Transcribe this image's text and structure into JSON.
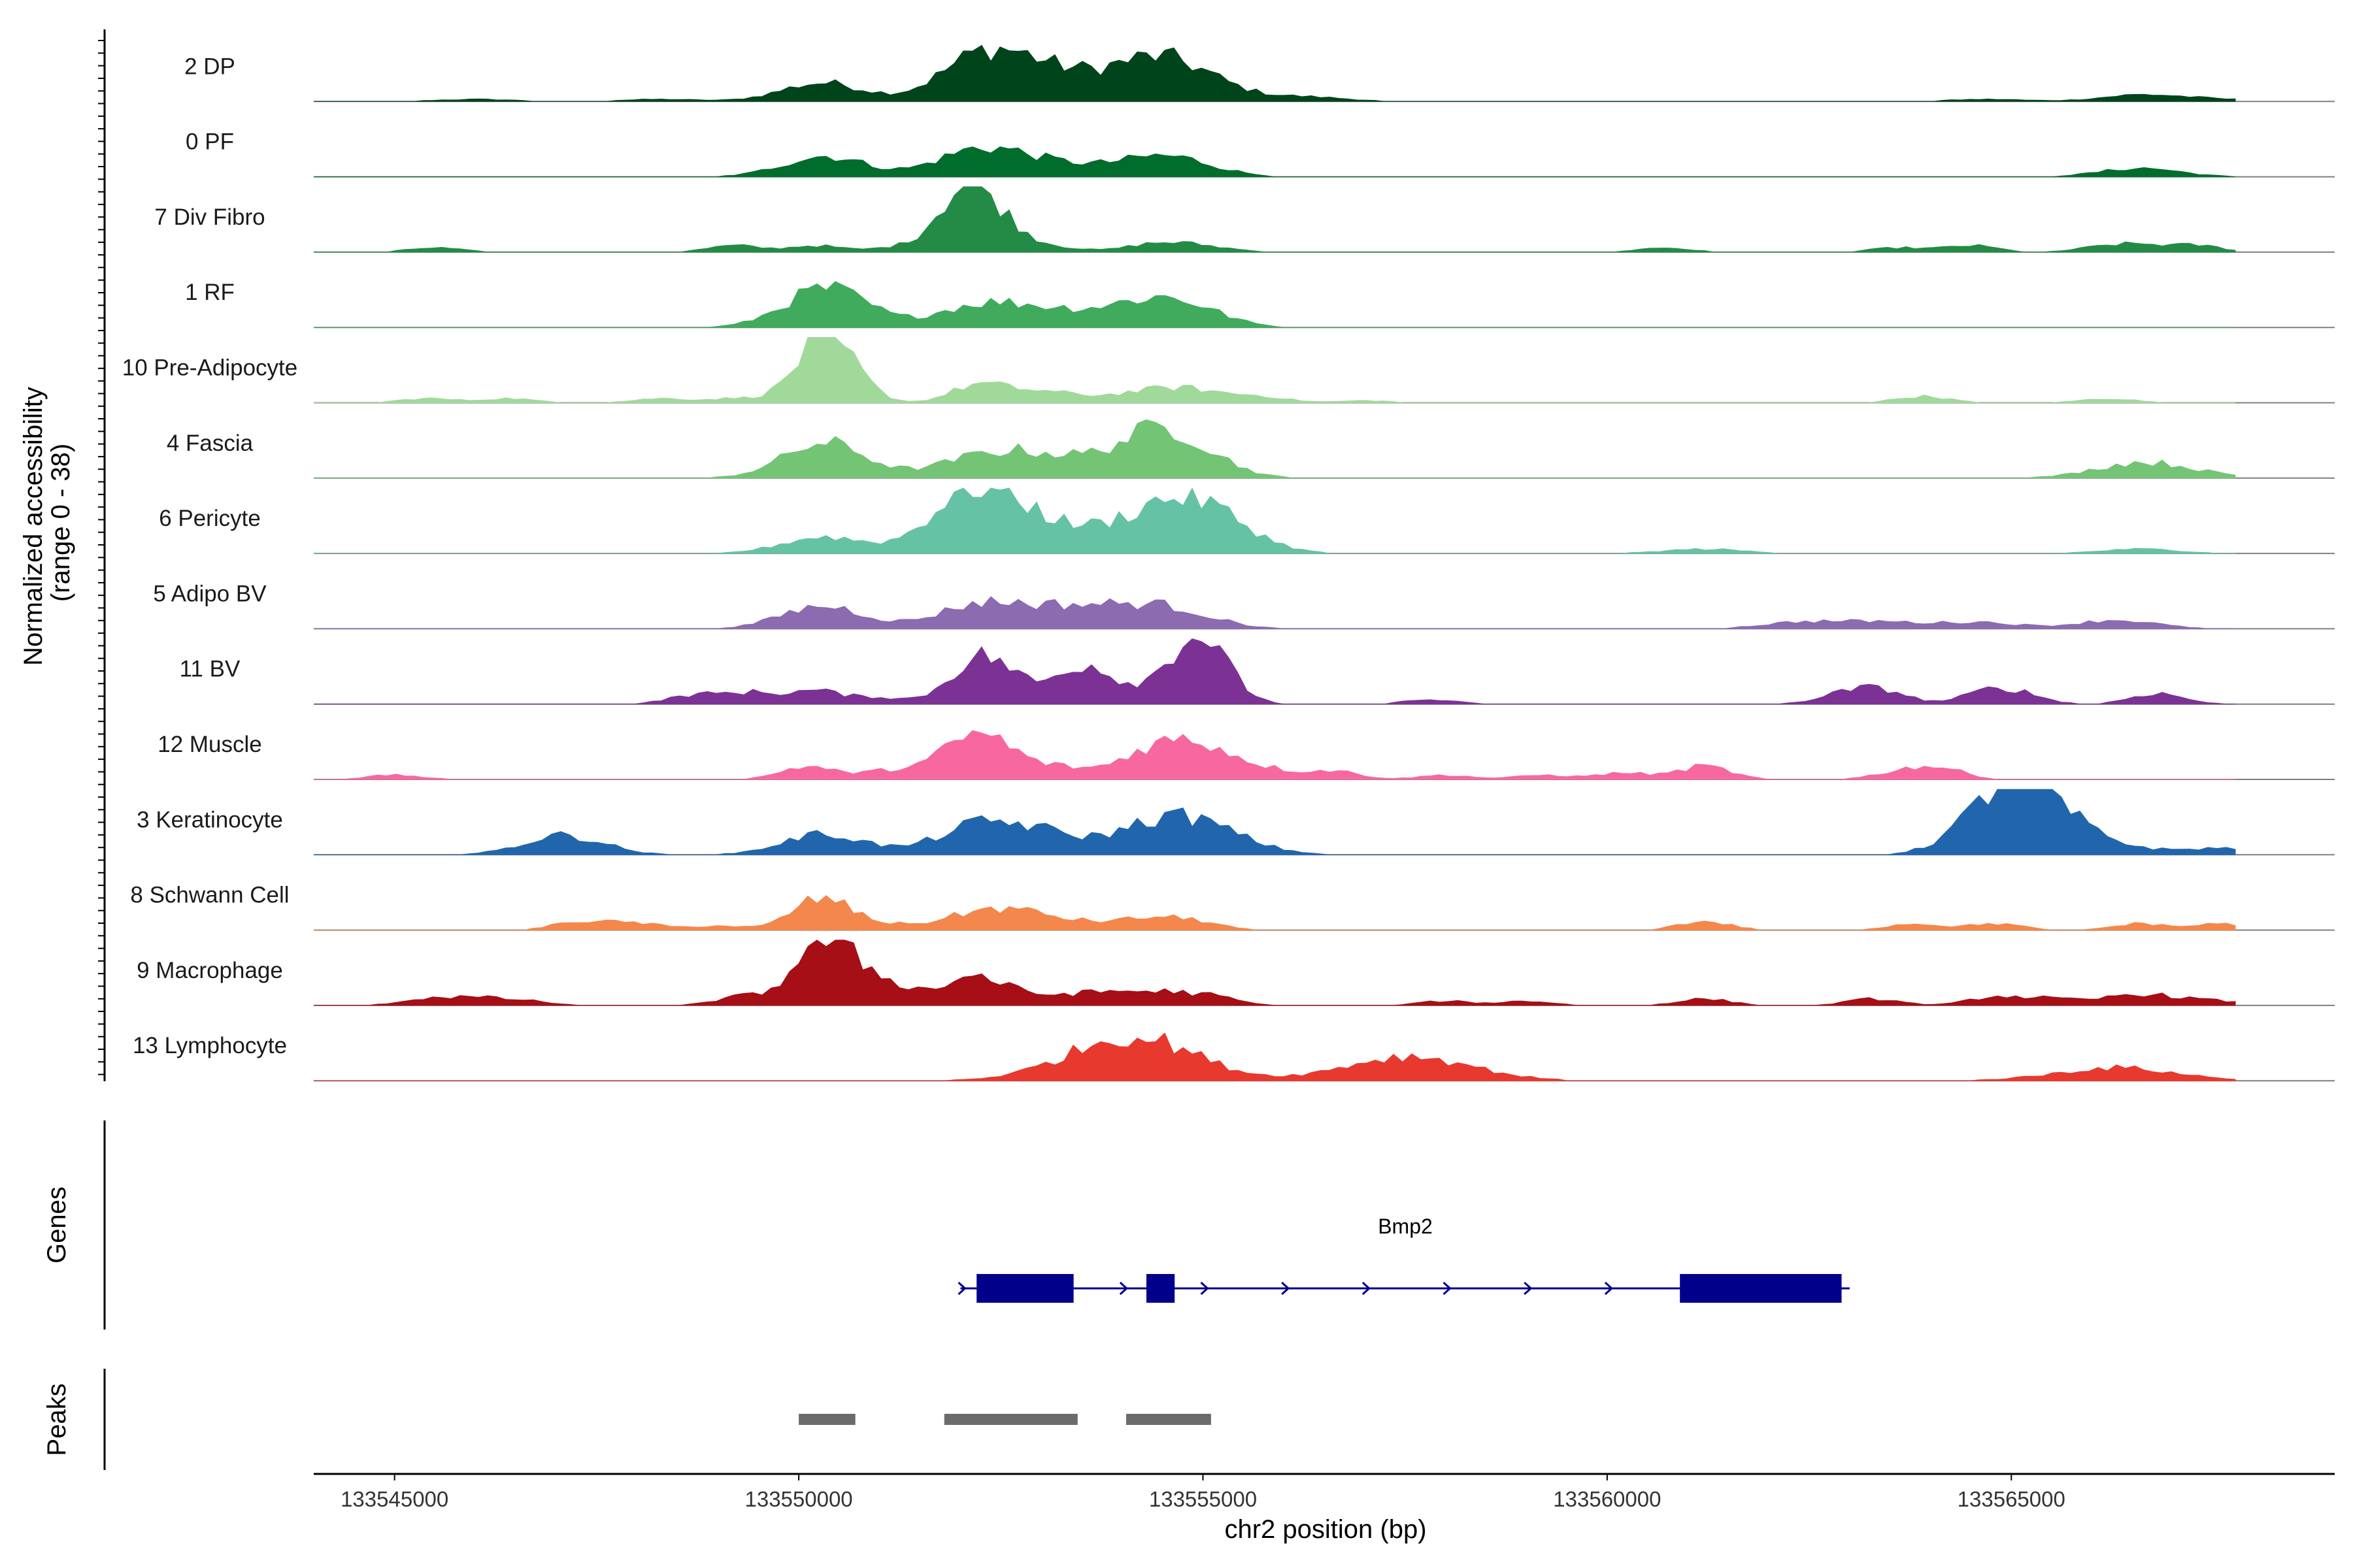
{
  "chart_data": {
    "type": "coverage_track",
    "chromosome": "chr2",
    "xlabel": "chr2 position (bp)",
    "ylabel_line1": "Normalized accessibility",
    "ylabel_line2": "(range 0 - 38)",
    "y_range": [
      0,
      38
    ],
    "xlim": [
      133544000,
      133569000
    ],
    "x_ticks": [
      133545000,
      133550000,
      133555000,
      133560000,
      133565000
    ],
    "x_tick_labels": [
      "133545000",
      "133550000",
      "133555000",
      "133560000",
      "133565000"
    ],
    "tracks": [
      {
        "name": "2 DP",
        "color": "#00441b",
        "peaks": [
          [
            133546000,
            1,
            60
          ],
          [
            133548300,
            1,
            60
          ],
          [
            133550200,
            6,
            60
          ],
          [
            133550500,
            3,
            60
          ],
          [
            133552100,
            12,
            60
          ],
          [
            133552500,
            11,
            60
          ],
          [
            133553000,
            8,
            60
          ],
          [
            133553600,
            6,
            60
          ],
          [
            133554300,
            12,
            60
          ],
          [
            133554700,
            8,
            60
          ],
          [
            133555200,
            4,
            60
          ],
          [
            133556300,
            2,
            60
          ],
          [
            133564700,
            1,
            60
          ],
          [
            133566600,
            3,
            60
          ],
          [
            133567500,
            1,
            60
          ]
        ]
      },
      {
        "name": "0 PF",
        "color": "#006d2c",
        "peaks": [
          [
            133550200,
            6,
            60
          ],
          [
            133550500,
            4,
            60
          ],
          [
            133552100,
            9,
            60
          ],
          [
            133552600,
            6,
            60
          ],
          [
            133553300,
            4,
            60
          ],
          [
            133554300,
            6,
            60
          ],
          [
            133554800,
            5,
            60
          ],
          [
            133566600,
            4,
            60
          ]
        ]
      },
      {
        "name": "7 Div Fibro",
        "color": "#238b45",
        "peaks": [
          [
            133545500,
            2,
            40
          ],
          [
            133549200,
            3,
            40
          ],
          [
            133550200,
            3,
            40
          ],
          [
            133551200,
            2,
            40
          ],
          [
            133551900,
            2,
            40
          ],
          [
            133552000,
            20,
            40
          ],
          [
            133552300,
            12,
            40
          ],
          [
            133552600,
            5,
            40
          ],
          [
            133553200,
            2,
            40
          ],
          [
            133554300,
            3,
            40
          ],
          [
            133554800,
            3,
            40
          ],
          [
            133555300,
            1,
            40
          ],
          [
            133560700,
            2,
            40
          ],
          [
            133563600,
            2,
            40
          ],
          [
            133564500,
            3,
            40
          ],
          [
            133566100,
            2,
            40
          ],
          [
            133566600,
            3,
            40
          ],
          [
            133567300,
            3,
            40
          ]
        ]
      },
      {
        "name": "1 RF",
        "color": "#41ab5d",
        "peaks": [
          [
            133550200,
            10,
            60
          ],
          [
            133550500,
            9,
            60
          ],
          [
            133552100,
            8,
            60
          ],
          [
            133552700,
            5,
            60
          ],
          [
            133553200,
            4,
            60
          ],
          [
            133553800,
            3,
            60
          ],
          [
            133554300,
            7,
            60
          ],
          [
            133554800,
            8,
            60
          ]
        ]
      },
      {
        "name": "10 Pre-Adipocyte",
        "color": "#a1d99b",
        "peaks": [
          [
            133545400,
            2,
            40
          ],
          [
            133546400,
            2,
            40
          ],
          [
            133548300,
            2,
            40
          ],
          [
            133549200,
            2,
            40
          ],
          [
            133550200,
            18,
            40
          ],
          [
            133550500,
            16,
            40
          ],
          [
            133552200,
            8,
            40
          ],
          [
            133552800,
            4,
            40
          ],
          [
            133553300,
            3,
            40
          ],
          [
            133554000,
            3,
            40
          ],
          [
            133554500,
            4,
            40
          ],
          [
            133554900,
            4,
            40
          ],
          [
            133555400,
            2,
            40
          ],
          [
            133555800,
            2,
            40
          ],
          [
            133557000,
            1,
            40
          ],
          [
            133563900,
            3,
            40
          ],
          [
            133566200,
            2,
            40
          ]
        ]
      },
      {
        "name": "4 Fascia",
        "color": "#74c476",
        "peaks": [
          [
            133550200,
            10,
            60
          ],
          [
            133550500,
            7,
            60
          ],
          [
            133552000,
            5,
            60
          ],
          [
            133552500,
            5,
            60
          ],
          [
            133552900,
            6,
            60
          ],
          [
            133553500,
            4,
            60
          ],
          [
            133554300,
            14,
            60
          ],
          [
            133554800,
            12,
            60
          ],
          [
            133566300,
            3,
            60
          ],
          [
            133566700,
            4,
            60
          ],
          [
            133567200,
            2,
            60
          ]
        ]
      },
      {
        "name": "6 Pericyte",
        "color": "#66c2a4",
        "peaks": [
          [
            133550200,
            5,
            60
          ],
          [
            133550500,
            3,
            60
          ],
          [
            133552000,
            18,
            60
          ],
          [
            133552400,
            13,
            60
          ],
          [
            133552900,
            8,
            60
          ],
          [
            133553500,
            5,
            60
          ],
          [
            133554300,
            13,
            60
          ],
          [
            133554900,
            16,
            60
          ],
          [
            133555400,
            6,
            60
          ],
          [
            133561200,
            2,
            60
          ],
          [
            133566600,
            2,
            60
          ]
        ]
      },
      {
        "name": "5 Adipo BV",
        "color": "#8c6bb1",
        "peaks": [
          [
            133550200,
            7,
            60
          ],
          [
            133550500,
            4,
            60
          ],
          [
            133552100,
            8,
            60
          ],
          [
            133552600,
            5,
            60
          ],
          [
            133553200,
            5,
            60
          ],
          [
            133553700,
            5,
            60
          ],
          [
            133554300,
            6,
            60
          ],
          [
            133554800,
            5,
            60
          ],
          [
            133562400,
            3,
            60
          ],
          [
            133563400,
            3,
            60
          ],
          [
            133564600,
            3,
            60
          ],
          [
            133566300,
            4,
            60
          ]
        ]
      },
      {
        "name": "11 BV",
        "color": "#7b3294",
        "peaks": [
          [
            133548700,
            4,
            40
          ],
          [
            133549400,
            5,
            40
          ],
          [
            133550200,
            6,
            40
          ],
          [
            133551000,
            3,
            40
          ],
          [
            133552100,
            14,
            40
          ],
          [
            133552500,
            13,
            40
          ],
          [
            133553300,
            6,
            40
          ],
          [
            133553600,
            14,
            40
          ],
          [
            133554300,
            5,
            40
          ],
          [
            133554900,
            28,
            40
          ],
          [
            133555200,
            6,
            40
          ],
          [
            133557800,
            2,
            40
          ],
          [
            133562900,
            4,
            40
          ],
          [
            133563400,
            6,
            40
          ],
          [
            133564700,
            5,
            40
          ],
          [
            133565100,
            4,
            40
          ],
          [
            133566800,
            5,
            40
          ]
        ]
      },
      {
        "name": "12 Muscle",
        "color": "#f768a1",
        "peaks": [
          [
            133545000,
            2,
            40
          ],
          [
            133550100,
            6,
            40
          ],
          [
            133551000,
            3,
            40
          ],
          [
            133551500,
            3,
            40
          ],
          [
            133552000,
            11,
            40
          ],
          [
            133552400,
            14,
            40
          ],
          [
            133553000,
            4,
            40
          ],
          [
            133553400,
            3,
            40
          ],
          [
            133554000,
            4,
            40
          ],
          [
            133554400,
            11,
            40
          ],
          [
            133554900,
            12,
            40
          ],
          [
            133555300,
            6,
            40
          ],
          [
            133555800,
            4,
            40
          ],
          [
            133556600,
            4,
            40
          ],
          [
            133558000,
            2,
            40
          ],
          [
            133559200,
            2,
            40
          ],
          [
            133560200,
            3,
            40
          ],
          [
            133561200,
            6,
            40
          ],
          [
            133563600,
            3,
            40
          ],
          [
            133564100,
            5,
            40
          ]
        ]
      },
      {
        "name": "3 Keratinocyte",
        "color": "#2166ac",
        "peaks": [
          [
            133547100,
            9,
            60
          ],
          [
            133550200,
            6,
            60
          ],
          [
            133550500,
            4,
            60
          ],
          [
            133552100,
            10,
            60
          ],
          [
            133552700,
            7,
            60
          ],
          [
            133553200,
            5,
            60
          ],
          [
            133554300,
            10,
            60
          ],
          [
            133554900,
            11,
            60
          ],
          [
            133555500,
            3,
            60
          ],
          [
            133564800,
            18,
            60
          ],
          [
            133565300,
            22,
            60
          ],
          [
            133566200,
            4,
            60
          ],
          [
            133567600,
            3,
            60
          ]
        ]
      },
      {
        "name": "8 Schwann Cell",
        "color": "#f4874b",
        "peaks": [
          [
            133547300,
            4,
            40
          ],
          [
            133548000,
            3,
            40
          ],
          [
            133549000,
            2,
            40
          ],
          [
            133550200,
            12,
            40
          ],
          [
            133550600,
            5,
            40
          ],
          [
            133551300,
            2,
            40
          ],
          [
            133552000,
            5,
            40
          ],
          [
            133552500,
            7,
            40
          ],
          [
            133553000,
            5,
            40
          ],
          [
            133553600,
            3,
            40
          ],
          [
            133554300,
            5,
            40
          ],
          [
            133554900,
            4,
            40
          ],
          [
            133561200,
            4,
            40
          ],
          [
            133563800,
            3,
            40
          ],
          [
            133564800,
            3,
            40
          ],
          [
            133566600,
            3,
            40
          ],
          [
            133567600,
            3,
            40
          ]
        ]
      },
      {
        "name": "9 Macrophage",
        "color": "#a50f15",
        "peaks": [
          [
            133545400,
            3,
            40
          ],
          [
            133546000,
            3,
            40
          ],
          [
            133546600,
            2,
            40
          ],
          [
            133549300,
            4,
            40
          ],
          [
            133550200,
            22,
            40
          ],
          [
            133550600,
            15,
            40
          ],
          [
            133551200,
            8,
            40
          ],
          [
            133552100,
            12,
            40
          ],
          [
            133552600,
            5,
            40
          ],
          [
            133553300,
            4,
            40
          ],
          [
            133553900,
            5,
            40
          ],
          [
            133554500,
            5,
            40
          ],
          [
            133555100,
            4,
            40
          ],
          [
            133558000,
            2,
            40
          ],
          [
            133559000,
            2,
            40
          ],
          [
            133561200,
            3,
            40
          ],
          [
            133563300,
            3,
            40
          ],
          [
            133564800,
            4,
            40
          ],
          [
            133565500,
            3,
            40
          ],
          [
            133566400,
            4,
            40
          ],
          [
            133566900,
            3,
            40
          ],
          [
            133567500,
            2,
            40
          ]
        ]
      },
      {
        "name": "13 Lymphocyte",
        "color": "#e8392f",
        "peaks": [
          [
            133553700,
            6,
            90
          ],
          [
            133554200,
            6,
            90
          ],
          [
            133554300,
            10,
            90
          ],
          [
            133557300,
            6,
            90
          ],
          [
            133557800,
            6,
            90
          ],
          [
            133566300,
            6,
            90
          ]
        ]
      }
    ],
    "genes": [
      {
        "name": "Bmp2",
        "strand": "+",
        "start": 133552000,
        "end": 133563000,
        "exons": [
          [
            133552200,
            133553400
          ],
          [
            133554300,
            133554650
          ],
          [
            133560900,
            133562900
          ]
        ]
      }
    ],
    "peak_regions": [
      [
        133550000,
        133550700
      ],
      [
        133551800,
        133553450
      ],
      [
        133554050,
        133555100
      ]
    ],
    "panel_labels": {
      "genes": "Genes",
      "peaks": "Peaks"
    }
  }
}
